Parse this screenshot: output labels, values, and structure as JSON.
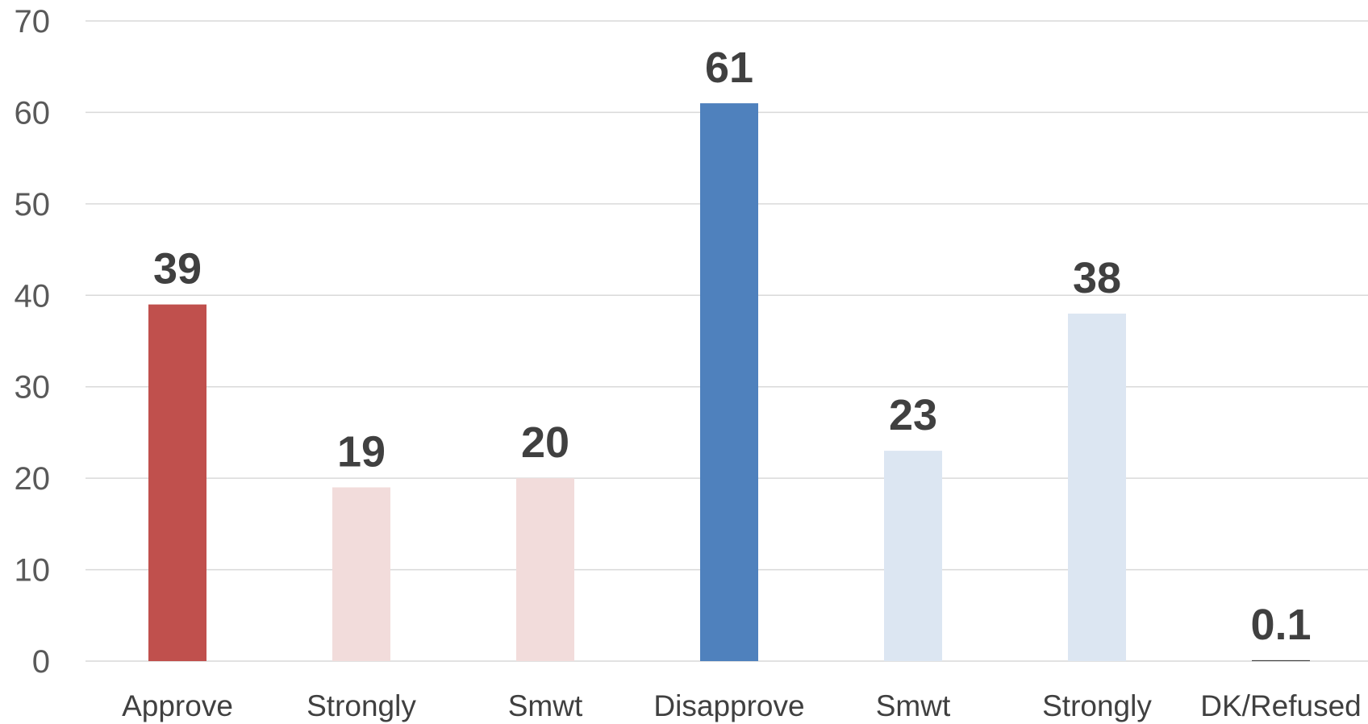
{
  "chart_data": {
    "type": "bar",
    "title": "",
    "xlabel": "",
    "ylabel": "",
    "categories": [
      "Approve",
      "Strongly",
      "Smwt",
      "Disapprove",
      "Smwt",
      "Strongly",
      "DK/Refused"
    ],
    "values": [
      39,
      19,
      20,
      61,
      23,
      38,
      0.1
    ],
    "data_labels": [
      "39",
      "19",
      "20",
      "61",
      "23",
      "38",
      "0.1"
    ],
    "bar_colors": [
      "#c0504d",
      "#f2dcdb",
      "#f2dcdb",
      "#4f81bd",
      "#dce6f2",
      "#dce6f2",
      "#404040"
    ],
    "ylim": [
      0,
      70
    ],
    "yticks": [
      0,
      10,
      20,
      30,
      40,
      50,
      60,
      70
    ],
    "grid": true,
    "legend": "none"
  }
}
